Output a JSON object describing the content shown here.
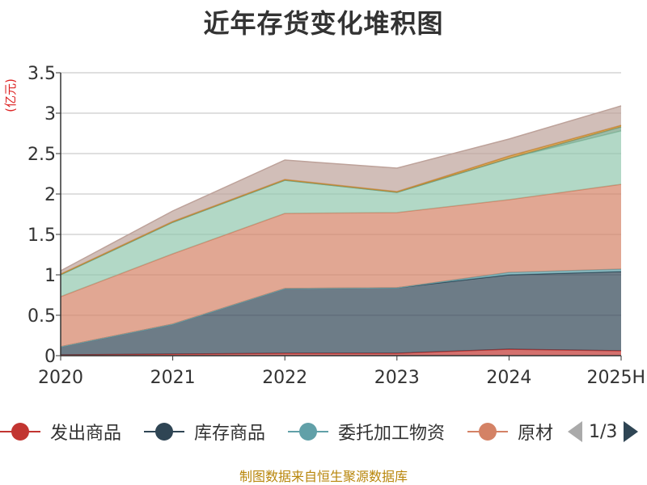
{
  "title": "近年存货变化堆积图",
  "unit_label": "(亿元)",
  "source_note": "制图数据来自恒生聚源数据库",
  "legend_page": "1/3",
  "legend_visible": [
    "发出商品",
    "库存商品",
    "委托加工物资",
    "原材"
  ],
  "chart_data": {
    "type": "area",
    "stacked": true,
    "categories": [
      "2020",
      "2021",
      "2022",
      "2023",
      "2024",
      "2025H"
    ],
    "ylim": [
      0,
      3.5
    ],
    "yticks": [
      0,
      0.5,
      1,
      1.5,
      2,
      2.5,
      3,
      3.5
    ],
    "ytick_labels": [
      "0",
      "0.5",
      "1",
      "1.5",
      "2",
      "2.5",
      "3",
      "3.5"
    ],
    "grid": true,
    "legend_position": "bottom",
    "series": [
      {
        "name": "发出商品",
        "color": "#c23531",
        "values": [
          0.01,
          0.02,
          0.03,
          0.03,
          0.08,
          0.06
        ]
      },
      {
        "name": "库存商品",
        "color": "#2f4554",
        "values": [
          0.1,
          0.37,
          0.8,
          0.81,
          0.92,
          0.98
        ]
      },
      {
        "name": "委托加工物资",
        "color": "#61a0a8",
        "values": [
          0.0,
          0.0,
          0.0,
          0.0,
          0.03,
          0.03
        ]
      },
      {
        "name": "原材料",
        "color": "#d48265",
        "values": [
          0.62,
          0.87,
          0.93,
          0.93,
          0.9,
          1.05
        ]
      },
      {
        "name": "",
        "color": "#91c7ae",
        "values": [
          0.27,
          0.39,
          0.41,
          0.25,
          0.51,
          0.66
        ]
      },
      {
        "name": "",
        "color": "#749f83",
        "values": [
          0.0,
          0.0,
          0.0,
          0.0,
          0.0,
          0.05
        ]
      },
      {
        "name": "",
        "color": "#ca8622",
        "values": [
          0.01,
          0.01,
          0.01,
          0.01,
          0.03,
          0.02
        ]
      },
      {
        "name": "",
        "color": "#bda29a",
        "values": [
          0.04,
          0.13,
          0.24,
          0.29,
          0.21,
          0.24
        ]
      }
    ]
  }
}
